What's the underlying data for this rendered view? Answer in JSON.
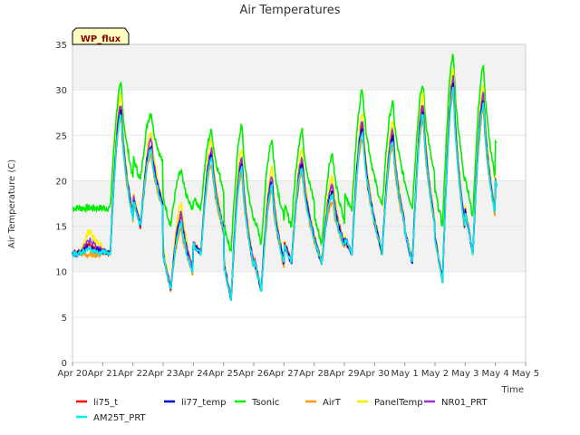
{
  "chart_data": {
    "type": "line",
    "title": "Air Temperatures",
    "xlabel": "Time",
    "ylabel": "Air Temperature (C)",
    "ylim": [
      0,
      35
    ],
    "yticks": [
      0,
      5,
      10,
      15,
      20,
      25,
      30,
      35
    ],
    "xlim": [
      0,
      15
    ],
    "xticks": [
      {
        "x": 0,
        "label": "Apr 20"
      },
      {
        "x": 1,
        "label": "Apr 21"
      },
      {
        "x": 2,
        "label": "Apr 22"
      },
      {
        "x": 3,
        "label": "Apr 23"
      },
      {
        "x": 4,
        "label": "Apr 24"
      },
      {
        "x": 5,
        "label": "Apr 25"
      },
      {
        "x": 6,
        "label": "Apr 26"
      },
      {
        "x": 7,
        "label": "Apr 27"
      },
      {
        "x": 8,
        "label": "Apr 28"
      },
      {
        "x": 9,
        "label": "Apr 29"
      },
      {
        "x": 10,
        "label": "Apr 30"
      },
      {
        "x": 11,
        "label": "May 1"
      },
      {
        "x": 12,
        "label": "May 2"
      },
      {
        "x": 13,
        "label": "May 3"
      },
      {
        "x": 14,
        "label": "May 4"
      },
      {
        "x": 15,
        "label": "May 5"
      }
    ],
    "grid": "horizontal bands",
    "legend_position": "bottom",
    "site_label": "WP_flux",
    "daily_values": {
      "days": [
        0,
        1,
        2,
        3,
        4,
        5,
        6,
        7,
        8,
        9,
        10,
        11,
        12,
        13,
        14
      ],
      "base_min": [
        12,
        12,
        15,
        8,
        12,
        7,
        8,
        11,
        11,
        12,
        12,
        11,
        9,
        12,
        17
      ],
      "base_max": [
        13,
        28,
        24,
        16,
        23,
        22,
        20,
        22,
        19,
        26,
        25,
        28,
        31,
        29,
        28
      ],
      "tsonic_min": [
        17,
        17,
        20,
        15,
        17,
        12,
        13,
        15,
        13,
        17,
        17,
        17,
        15,
        16,
        22
      ],
      "tsonic_max": [
        17,
        30.5,
        27.5,
        21,
        25.5,
        26,
        24.5,
        25.5,
        23,
        30,
        28.5,
        30.5,
        34,
        32.5,
        32
      ]
    },
    "series": [
      {
        "name": "li75_t",
        "color": "#ff0000",
        "offset": 0.0
      },
      {
        "name": "li77_temp",
        "color": "#0000cc",
        "offset": -0.3
      },
      {
        "name": "Tsonic",
        "color": "#00ee00",
        "offset": 0.0
      },
      {
        "name": "AirT",
        "color": "#ff9900",
        "offset": -1.2
      },
      {
        "name": "PanelTemp",
        "color": "#ffee00",
        "offset": 1.5
      },
      {
        "name": "NR01_PRT",
        "color": "#9933cc",
        "offset": 0.5
      },
      {
        "name": "AM25T_PRT",
        "color": "#00eeee",
        "offset": -0.6
      }
    ]
  }
}
